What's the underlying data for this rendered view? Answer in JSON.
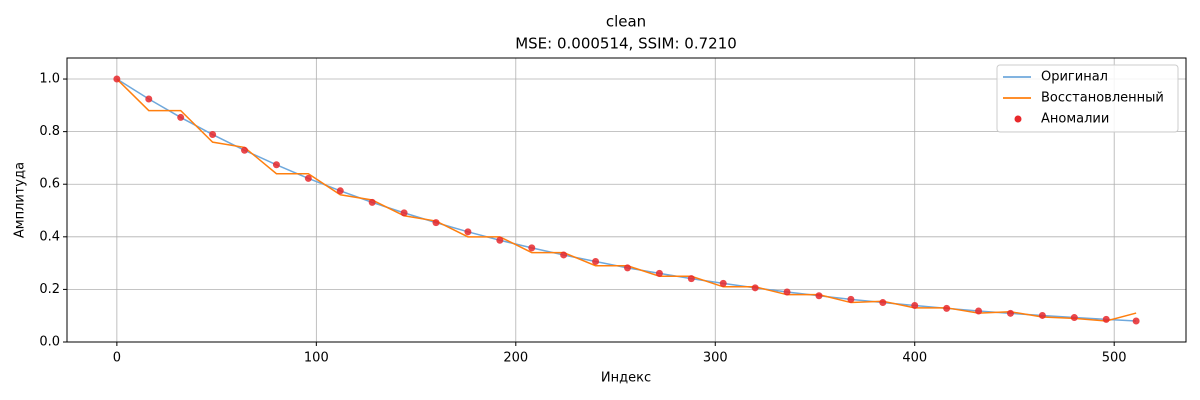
{
  "chart_data": {
    "type": "line",
    "title": "clean",
    "subtitle": "MSE: 0.000514, SSIM: 0.7210",
    "x_label": "Индекс",
    "y_label": "Амплитуда",
    "x": [
      0,
      16,
      32,
      48,
      64,
      80,
      96,
      112,
      128,
      144,
      160,
      176,
      192,
      208,
      224,
      240,
      256,
      272,
      288,
      304,
      320,
      336,
      352,
      368,
      384,
      400,
      416,
      432,
      448,
      464,
      480,
      496,
      511
    ],
    "series": [
      {
        "name": "Оригинал",
        "color": "#6fa8dc",
        "values": [
          1.0,
          0.924,
          0.854,
          0.789,
          0.729,
          0.674,
          0.622,
          0.575,
          0.531,
          0.491,
          0.454,
          0.419,
          0.387,
          0.358,
          0.331,
          0.306,
          0.282,
          0.261,
          0.241,
          0.223,
          0.206,
          0.19,
          0.176,
          0.162,
          0.15,
          0.139,
          0.128,
          0.118,
          0.109,
          0.101,
          0.093,
          0.086,
          0.08
        ]
      },
      {
        "name": "Восстановленный",
        "color": "#ff7f0e",
        "values": [
          1.0,
          0.88,
          0.88,
          0.76,
          0.74,
          0.64,
          0.64,
          0.56,
          0.54,
          0.48,
          0.46,
          0.4,
          0.4,
          0.34,
          0.34,
          0.29,
          0.29,
          0.25,
          0.25,
          0.21,
          0.21,
          0.18,
          0.18,
          0.15,
          0.155,
          0.13,
          0.13,
          0.11,
          0.115,
          0.095,
          0.09,
          0.08,
          0.11
        ]
      },
      {
        "name": "Аномалии",
        "color": "#e8282b",
        "type": "scatter",
        "x": [
          0,
          16,
          32,
          48,
          64,
          80,
          96,
          112,
          128,
          144,
          160,
          176,
          192,
          208,
          224,
          240,
          256,
          272,
          288,
          304,
          320,
          336,
          352,
          368,
          384,
          400,
          416,
          432,
          448,
          464,
          480,
          496,
          511
        ],
        "values": [
          1.0,
          0.924,
          0.854,
          0.789,
          0.729,
          0.674,
          0.622,
          0.575,
          0.531,
          0.491,
          0.454,
          0.419,
          0.387,
          0.358,
          0.331,
          0.306,
          0.282,
          0.261,
          0.241,
          0.223,
          0.206,
          0.19,
          0.176,
          0.162,
          0.15,
          0.139,
          0.128,
          0.118,
          0.109,
          0.101,
          0.093,
          0.086,
          0.08
        ]
      }
    ],
    "xlim": [
      -25,
      536
    ],
    "ylim": [
      0,
      1.08
    ],
    "xticks": [
      0,
      100,
      200,
      300,
      400,
      500
    ],
    "yticks": [
      {
        "value": 0,
        "label": "0.0"
      },
      0.2,
      0.4,
      0.6,
      0.8,
      {
        "value": 1,
        "label": "1.0"
      }
    ],
    "grid": true,
    "legend": "upper right"
  }
}
